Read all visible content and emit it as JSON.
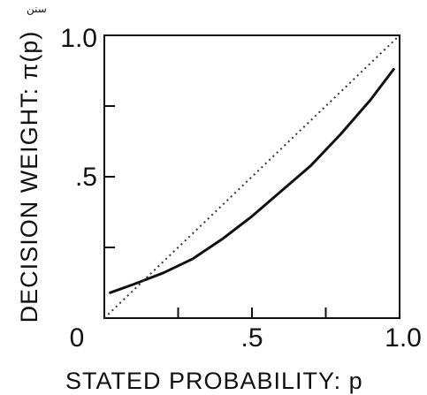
{
  "chart_data": {
    "type": "line",
    "title": "",
    "xlabel": "STATED PROBABILITY: p",
    "ylabel": "DECISION WEIGHT: π(p)",
    "xlim": [
      0,
      1
    ],
    "ylim": [
      0,
      1
    ],
    "x_ticks": [
      0,
      0.25,
      0.5,
      0.75,
      1.0
    ],
    "y_ticks": [
      0,
      0.25,
      0.5,
      0.75,
      1.0
    ],
    "x_tick_labels": [
      "0",
      ".5",
      "1.0"
    ],
    "y_tick_labels": [
      ".5",
      "1.0"
    ],
    "series": [
      {
        "style": "solid",
        "color": "#111111",
        "x": [
          0.02,
          0.1,
          0.2,
          0.3,
          0.4,
          0.5,
          0.6,
          0.7,
          0.8,
          0.9,
          0.98
        ],
        "y": [
          0.09,
          0.12,
          0.16,
          0.21,
          0.28,
          0.36,
          0.45,
          0.54,
          0.65,
          0.77,
          0.88
        ]
      },
      {
        "style": "dotted",
        "color": "#333333",
        "x": [
          0,
          1
        ],
        "y": [
          0,
          1
        ]
      }
    ],
    "grid": false,
    "legend": "none"
  },
  "header_mark": "سنن"
}
